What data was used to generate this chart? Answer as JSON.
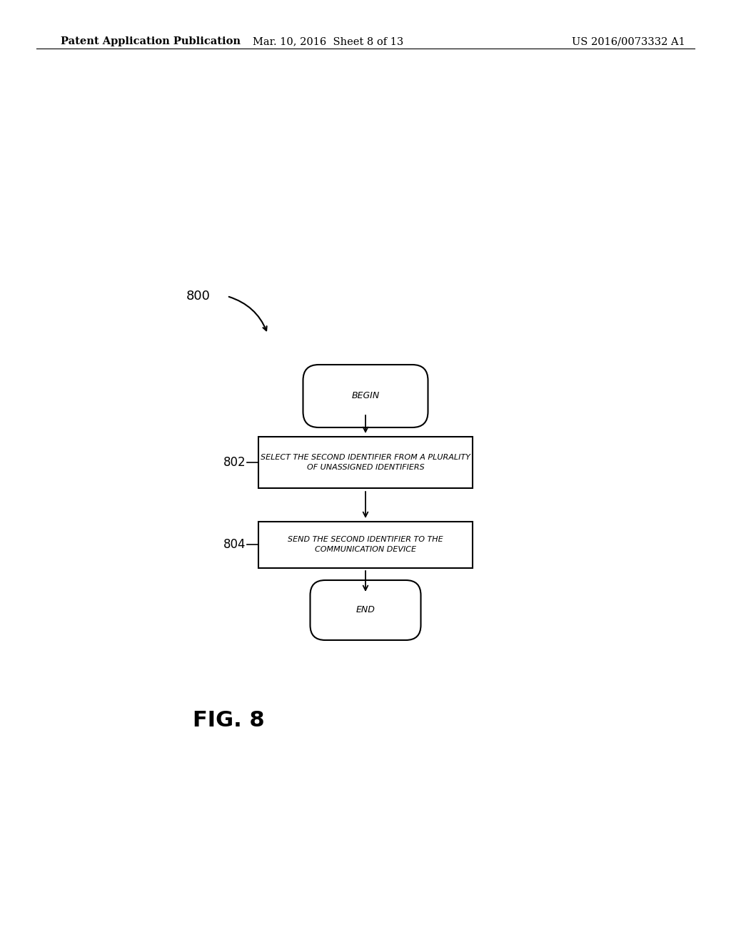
{
  "bg_color": "#ffffff",
  "header_left": "Patent Application Publication",
  "header_mid": "Mar. 10, 2016  Sheet 8 of 13",
  "header_right": "US 2016/0073332 A1",
  "fig_label": "FIG. 8",
  "diagram_label": "800",
  "node_begin_text": "BEGIN",
  "node_802_text": "SELECT THE SECOND IDENTIFIER FROM A PLURALITY\nOF UNASSIGNED IDENTIFIERS",
  "node_802_label": "802",
  "node_804_text": "SEND THE SECOND IDENTIFIER TO THE\nCOMMUNICATION DEVICE",
  "node_804_label": "804",
  "node_end_text": "END"
}
